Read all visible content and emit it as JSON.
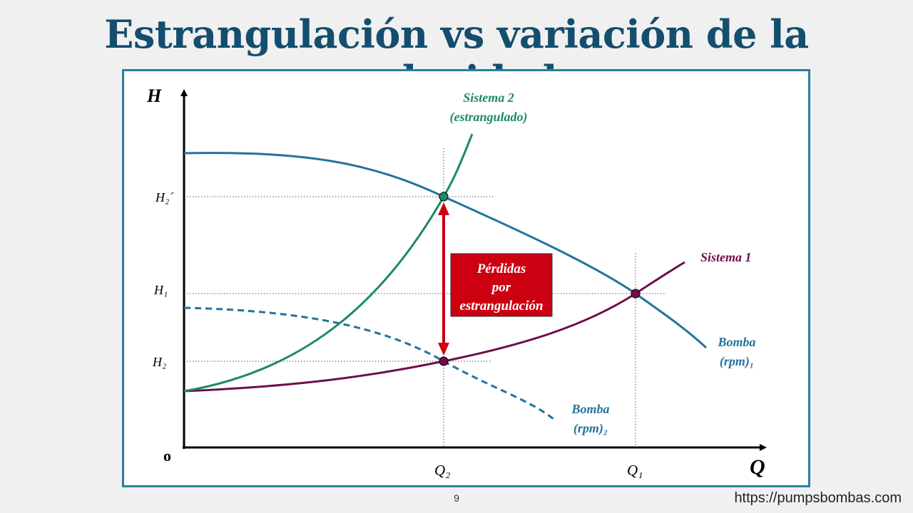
{
  "title": "Estrangulación vs variación de la velocidad",
  "footer": {
    "page_number": "9",
    "url": "https://pumpsbombas.com"
  },
  "axes": {
    "y_label": "H",
    "x_label": "Q",
    "origin_label": "o"
  },
  "ticks": {
    "h2_prime": "H₂´",
    "h1": "H₁",
    "h2": "H₂",
    "q2": "Q₂",
    "q1": "Q₁"
  },
  "curves": {
    "sistema2": {
      "line1": "Sistema 2",
      "line2": "(estrangulado)",
      "color": "#1c8a63"
    },
    "sistema1": {
      "label": "Sistema 1",
      "color": "#6e0e4a"
    },
    "bomba1": {
      "line1": "Bomba",
      "line2": "(rpm)₁",
      "color": "#22749a"
    },
    "bomba2": {
      "line1": "Bomba",
      "line2": "(rpm)₂",
      "color": "#22749a"
    }
  },
  "losses_box": {
    "line1": "Pérdidas",
    "line2": "por",
    "line3": "estrangulación",
    "color": "#cc0011"
  }
}
